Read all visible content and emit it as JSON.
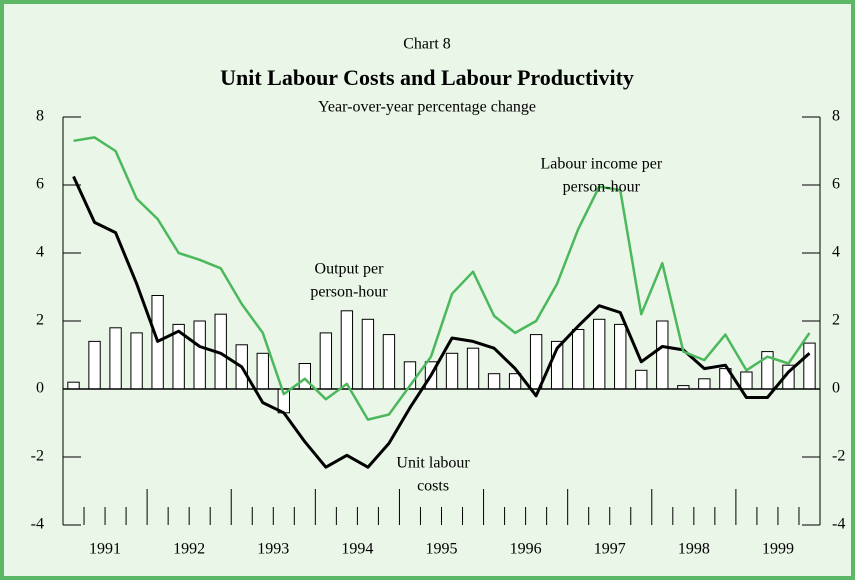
{
  "chart_data": {
    "type": "bar_line",
    "label": "Chart 8",
    "title": "Unit Labour Costs and Labour Productivity",
    "subtitle": "Year-over-year percentage change",
    "x": [
      1991.125,
      1991.375,
      1991.625,
      1991.875,
      1992.125,
      1992.375,
      1992.625,
      1992.875,
      1993.125,
      1993.375,
      1993.625,
      1993.875,
      1994.125,
      1994.375,
      1994.625,
      1994.875,
      1995.125,
      1995.375,
      1995.625,
      1995.875,
      1996.125,
      1996.375,
      1996.625,
      1996.875,
      1997.125,
      1997.375,
      1997.625,
      1997.875,
      1998.125,
      1998.375,
      1998.625,
      1998.875,
      1999.125,
      1999.375,
      1999.625,
      1999.875
    ],
    "xlim": [
      1991,
      2000
    ],
    "xticks": [
      {
        "value": 1991.5,
        "label": "1991"
      },
      {
        "value": 1992.5,
        "label": "1992"
      },
      {
        "value": 1993.5,
        "label": "1993"
      },
      {
        "value": 1994.5,
        "label": "1994"
      },
      {
        "value": 1995.5,
        "label": "1995"
      },
      {
        "value": 1996.5,
        "label": "1996"
      },
      {
        "value": 1997.5,
        "label": "1997"
      },
      {
        "value": 1998.5,
        "label": "1998"
      },
      {
        "value": 1999.5,
        "label": "1999"
      }
    ],
    "xmajorticks": [
      1992,
      1993,
      1994,
      1995,
      1996,
      1997,
      1998,
      1999
    ],
    "xminorticks": [
      1991.25,
      1991.5,
      1991.75,
      1992.25,
      1992.5,
      1992.75,
      1993.25,
      1993.5,
      1993.75,
      1994.25,
      1994.5,
      1994.75,
      1995.25,
      1995.5,
      1995.75,
      1996.25,
      1996.5,
      1996.75,
      1997.25,
      1997.5,
      1997.75,
      1998.25,
      1998.5,
      1998.75,
      1999.25,
      1999.5,
      1999.75
    ],
    "ylim": [
      -4,
      8
    ],
    "yticks": [
      -4,
      -2,
      0,
      2,
      4,
      6,
      8
    ],
    "y2lim": [
      -4,
      8
    ],
    "y2ticks": [
      -4,
      -2,
      0,
      2,
      4,
      6,
      8
    ],
    "series": [
      {
        "name": "Output per person-hour",
        "type": "bar",
        "color": "#ffffff",
        "values": [
          0.2,
          1.4,
          1.8,
          1.65,
          2.75,
          1.9,
          2.0,
          2.2,
          1.3,
          1.05,
          -0.7,
          0.75,
          1.65,
          2.3,
          2.05,
          1.6,
          0.8,
          0.8,
          1.05,
          1.2,
          0.45,
          0.45,
          1.6,
          1.4,
          1.75,
          2.05,
          1.9,
          0.55,
          2.0,
          0.1,
          0.3,
          0.6,
          0.5,
          1.1,
          0.7,
          1.35
        ]
      },
      {
        "name": "Unit labour costs",
        "type": "line",
        "color": "#000000",
        "values": [
          6.25,
          4.9,
          4.6,
          3.1,
          1.4,
          1.7,
          1.25,
          1.05,
          0.65,
          -0.4,
          -0.7,
          -1.55,
          -2.3,
          -1.95,
          -2.3,
          -1.6,
          -0.55,
          0.4,
          1.5,
          1.4,
          1.2,
          0.6,
          -0.2,
          1.2,
          1.85,
          2.45,
          2.25,
          0.8,
          1.25,
          1.15,
          0.6,
          0.7,
          -0.25,
          -0.25,
          0.5,
          1.05
        ]
      },
      {
        "name": "Labour income per person-hour",
        "type": "line",
        "color": "#4cb85c",
        "values": [
          7.3,
          7.4,
          7.0,
          5.6,
          5.0,
          4.0,
          3.8,
          3.55,
          2.5,
          1.65,
          -0.15,
          0.3,
          -0.3,
          0.15,
          -0.9,
          -0.75,
          0.1,
          0.95,
          2.8,
          3.45,
          2.15,
          1.65,
          2.0,
          3.1,
          4.7,
          5.95,
          5.85,
          2.2,
          3.7,
          1.1,
          0.85,
          1.6,
          0.55,
          0.95,
          0.75,
          1.65
        ]
      }
    ],
    "annotations": [
      {
        "lines": [
          "Labour income per",
          "person-hour"
        ],
        "x": 1997.4,
        "y": 6.6
      },
      {
        "lines": [
          "Output per",
          "person-hour"
        ],
        "x": 1994.4,
        "y": 3.5
      },
      {
        "lines": [
          "Unit labour",
          "costs"
        ],
        "x": 1995.4,
        "y": -2.2
      }
    ]
  }
}
